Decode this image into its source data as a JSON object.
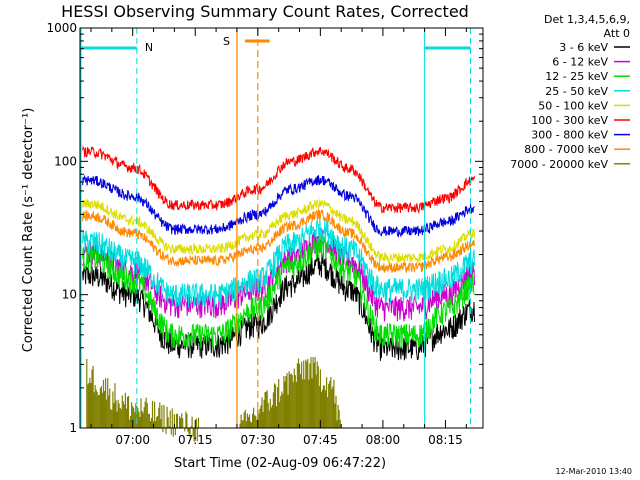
{
  "chart_data": {
    "type": "line",
    "title": "HESSI Observing Summary Count Rates, Corrected",
    "xlabel": "Start Time (02-Aug-09 06:47:22)",
    "ylabel": "Corrected Count Rate (s⁻¹ detector⁻¹)",
    "y_scale": "log",
    "ylim": [
      1,
      1000
    ],
    "xlim": [
      "06:47:22",
      "08:24:00"
    ],
    "x_ticks": [
      "07:00",
      "07:15",
      "07:30",
      "07:45",
      "08:00",
      "08:15"
    ],
    "y_ticks": [
      "1",
      "10",
      "100",
      "1000"
    ],
    "legend": {
      "placement": "right",
      "header": [
        "Det 1,3,4,5,6,9,",
        "Att 0"
      ]
    },
    "series": [
      {
        "name": "3 - 6 keV",
        "color": "#000000",
        "x": [
          "06:50",
          "07:00",
          "07:10",
          "07:20",
          "07:30",
          "07:38",
          "07:45",
          "07:52",
          "08:00",
          "08:08",
          "08:15",
          "08:22"
        ],
        "values": [
          14,
          10,
          4.2,
          4.2,
          6,
          12,
          17,
          11,
          4,
          4,
          5.5,
          8
        ]
      },
      {
        "name": "6 - 12 keV",
        "color": "#cc00cc",
        "x": [
          "06:50",
          "07:00",
          "07:10",
          "07:20",
          "07:30",
          "07:38",
          "07:45",
          "07:52",
          "08:00",
          "08:08",
          "08:15",
          "08:22"
        ],
        "values": [
          21,
          15,
          8.5,
          8.5,
          11,
          19,
          26,
          18,
          8,
          8,
          10,
          15
        ]
      },
      {
        "name": "12 - 25 keV",
        "color": "#00dd00",
        "x": [
          "06:50",
          "07:00",
          "07:10",
          "07:20",
          "07:30",
          "07:38",
          "07:45",
          "07:52",
          "08:00",
          "08:08",
          "08:15",
          "08:22"
        ],
        "values": [
          19,
          13,
          5,
          5,
          8,
          17,
          23,
          15,
          5,
          5,
          7.5,
          12
        ]
      },
      {
        "name": "25 - 50 keV",
        "color": "#00dddd",
        "x": [
          "06:50",
          "07:00",
          "07:10",
          "07:20",
          "07:30",
          "07:38",
          "07:45",
          "07:52",
          "08:00",
          "08:08",
          "08:15",
          "08:22"
        ],
        "values": [
          25,
          18,
          10,
          10,
          13,
          24,
          32,
          22,
          11,
          11,
          13,
          18
        ]
      },
      {
        "name": "50 - 100 keV",
        "color": "#dddd00",
        "x": [
          "06:50",
          "07:00",
          "07:10",
          "07:20",
          "07:30",
          "07:38",
          "07:45",
          "07:52",
          "08:00",
          "08:08",
          "08:15",
          "08:22"
        ],
        "values": [
          48,
          36,
          22,
          22,
          28,
          40,
          48,
          36,
          19,
          19,
          22,
          29
        ]
      },
      {
        "name": "100 - 300 keV",
        "color": "#ff0000",
        "x": [
          "06:50",
          "07:00",
          "07:10",
          "07:20",
          "07:30",
          "07:38",
          "07:45",
          "07:52",
          "08:00",
          "08:08",
          "08:15",
          "08:22"
        ],
        "values": [
          118,
          90,
          47,
          47,
          62,
          100,
          120,
          88,
          45,
          45,
          53,
          73
        ]
      },
      {
        "name": "300 - 800 keV",
        "color": "#0000dd",
        "x": [
          "06:50",
          "07:00",
          "07:10",
          "07:20",
          "07:30",
          "07:38",
          "07:45",
          "07:52",
          "08:00",
          "08:08",
          "08:15",
          "08:22"
        ],
        "values": [
          72,
          55,
          31,
          31,
          40,
          62,
          73,
          55,
          30,
          30,
          35,
          45
        ]
      },
      {
        "name": "800 - 7000 keV",
        "color": "#ff8800",
        "x": [
          "06:50",
          "07:00",
          "07:10",
          "07:20",
          "07:30",
          "07:38",
          "07:45",
          "07:52",
          "08:00",
          "08:08",
          "08:15",
          "08:22"
        ],
        "values": [
          39,
          29,
          18,
          18,
          22,
          33,
          40,
          29,
          16,
          16,
          19,
          24
        ]
      },
      {
        "name": "7000 - 20000 keV",
        "color": "#808000",
        "x": [
          "06:49",
          "06:53",
          "06:58",
          "07:18",
          "07:25",
          "07:36",
          "07:42",
          "07:48",
          "07:50"
        ],
        "values": [
          2.8,
          2.2,
          1.6,
          1,
          1,
          2.2,
          3.2,
          2.2,
          1
        ]
      }
    ],
    "annotations": [
      {
        "label": "N",
        "color": "#00dddd",
        "x": "07:01"
      },
      {
        "label": "S",
        "color": "#ff8800",
        "x": "07:25"
      }
    ]
  },
  "footer": {
    "date": "12-Mar-2010 13:40"
  }
}
